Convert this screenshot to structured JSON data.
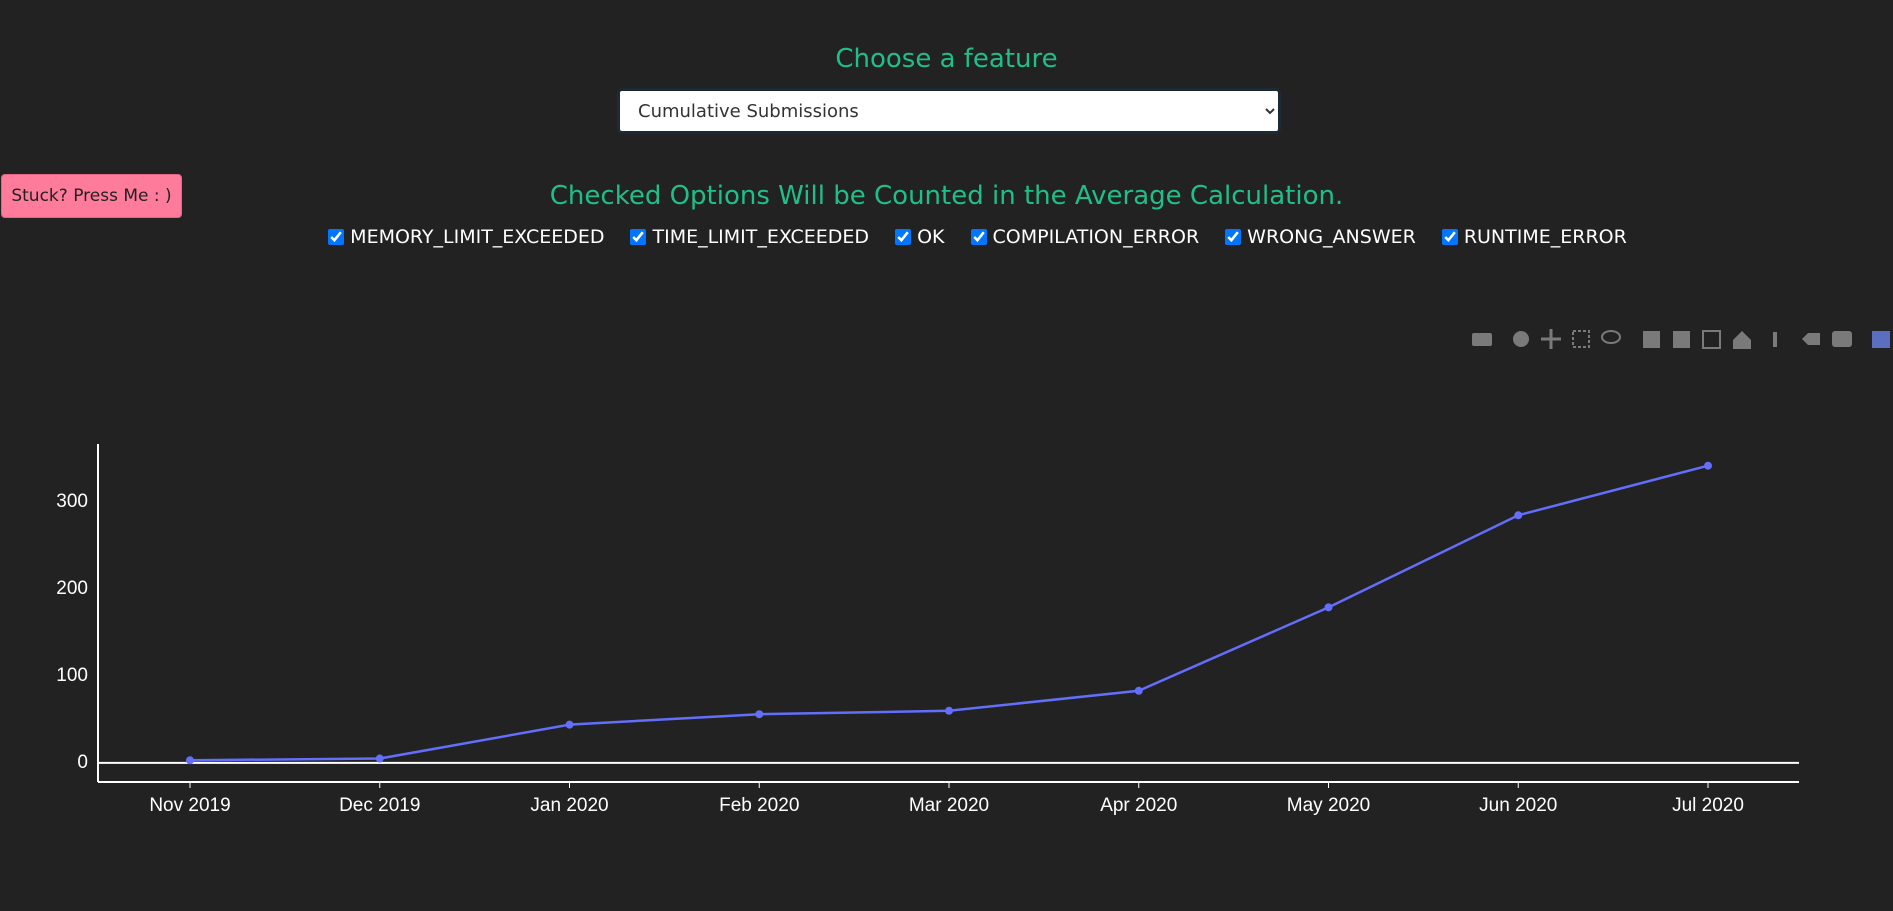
{
  "header": {
    "title": "Choose a feature",
    "selected_feature": "Cumulative Submissions"
  },
  "help_button": "Stuck? Press Me : )",
  "options": {
    "title": "Checked Options Will be Counted in the Average Calculation.",
    "items": [
      {
        "label": "MEMORY_LIMIT_EXCEEDED",
        "checked": true
      },
      {
        "label": "TIME_LIMIT_EXCEEDED",
        "checked": true
      },
      {
        "label": "OK",
        "checked": true
      },
      {
        "label": "COMPILATION_ERROR",
        "checked": true
      },
      {
        "label": "WRONG_ANSWER",
        "checked": true
      },
      {
        "label": "RUNTIME_ERROR",
        "checked": true
      }
    ]
  },
  "chart_data": {
    "type": "line",
    "categories": [
      "Nov 2019",
      "Dec 2019",
      "Jan 2020",
      "Feb 2020",
      "Mar 2020",
      "Apr 2020",
      "May 2020",
      "Jun 2020",
      "Jul 2020"
    ],
    "series": [
      {
        "color": "#636efa",
        "values": [
          3,
          5,
          44,
          56,
          60,
          83,
          179,
          285,
          342
        ]
      }
    ],
    "ylim": [
      -22,
      367
    ],
    "yticks": [
      0,
      100,
      200,
      300
    ],
    "zeroline": true
  }
}
